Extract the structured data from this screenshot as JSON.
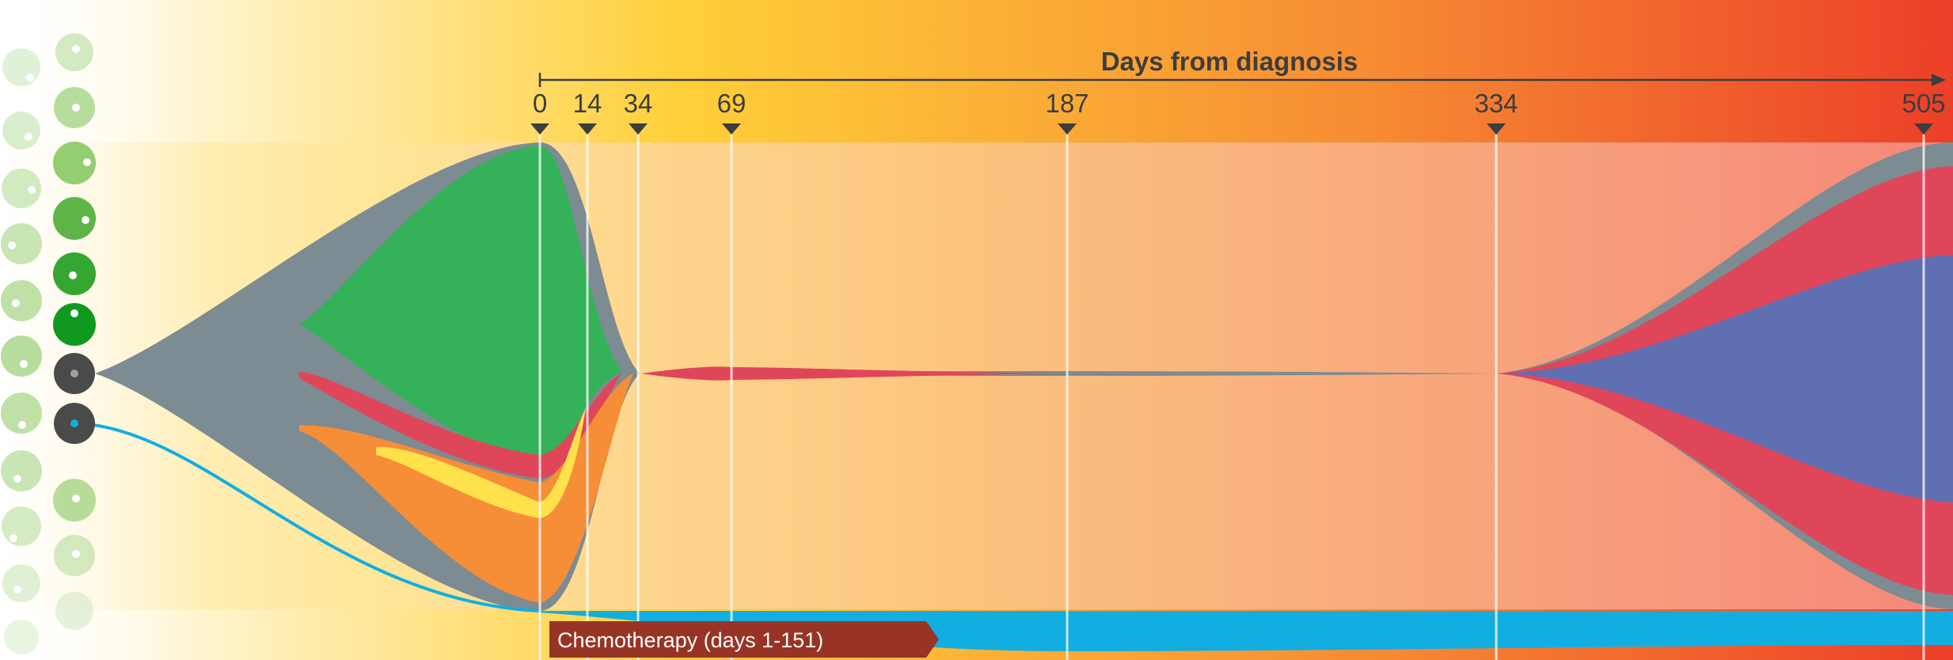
{
  "axis": {
    "title": "Days from diagnosis",
    "ticks": [
      {
        "label": "0",
        "day": 0
      },
      {
        "label": "14",
        "day": 14
      },
      {
        "label": "34",
        "day": 34
      },
      {
        "label": "69",
        "day": 69
      },
      {
        "label": "187",
        "day": 187
      },
      {
        "label": "334",
        "day": 334
      },
      {
        "label": "505",
        "day": 505
      }
    ]
  },
  "treatment": {
    "label": "Chemotherapy  (days 1-151)",
    "start_day": 1,
    "end_day": 151
  },
  "colors": {
    "clone_founder": "#7d8b92",
    "clone_green": "#35b259",
    "clone_red": "#e0465a",
    "clone_orange": "#f68d37",
    "clone_yellow": "#ffe14b",
    "clone_blue": "#606eb2",
    "clone_cyan": "#12aee2",
    "treatment": "#983425",
    "gradient_start": "#fff8dc",
    "gradient_mid": "#fcd03a",
    "gradient_end": "#ec4326"
  }
}
